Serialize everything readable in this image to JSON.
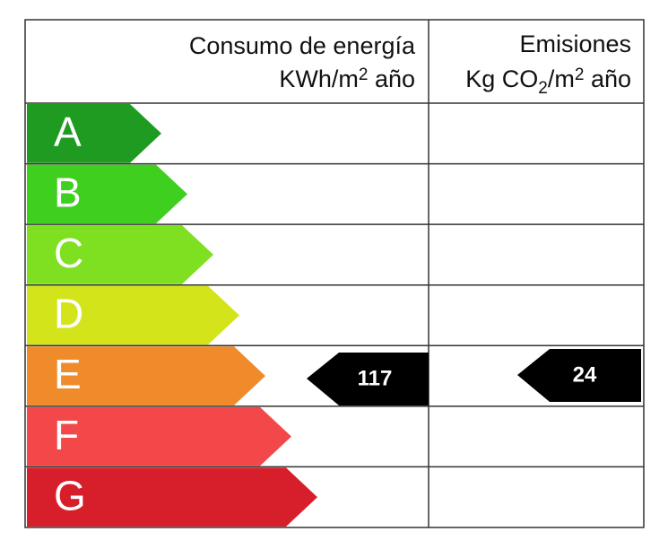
{
  "header": {
    "consumption_title": "Consumo de energía",
    "consumption_unit": [
      "KWh/m",
      "2",
      " año"
    ],
    "emissions_title": "Emisiones",
    "emissions_unit": [
      "Kg CO",
      "2",
      "/m",
      "2",
      " año"
    ]
  },
  "ratings": [
    {
      "letter": "A",
      "color": "#1f9b22"
    },
    {
      "letter": "B",
      "color": "#3fcf1f"
    },
    {
      "letter": "C",
      "color": "#7ee021"
    },
    {
      "letter": "D",
      "color": "#d4e41b"
    },
    {
      "letter": "E",
      "color": "#f08b2b"
    },
    {
      "letter": "F",
      "color": "#f2484a"
    },
    {
      "letter": "G",
      "color": "#d61f2b"
    }
  ],
  "consumption": {
    "value": 117
  },
  "emissions": {
    "value": 24
  }
}
